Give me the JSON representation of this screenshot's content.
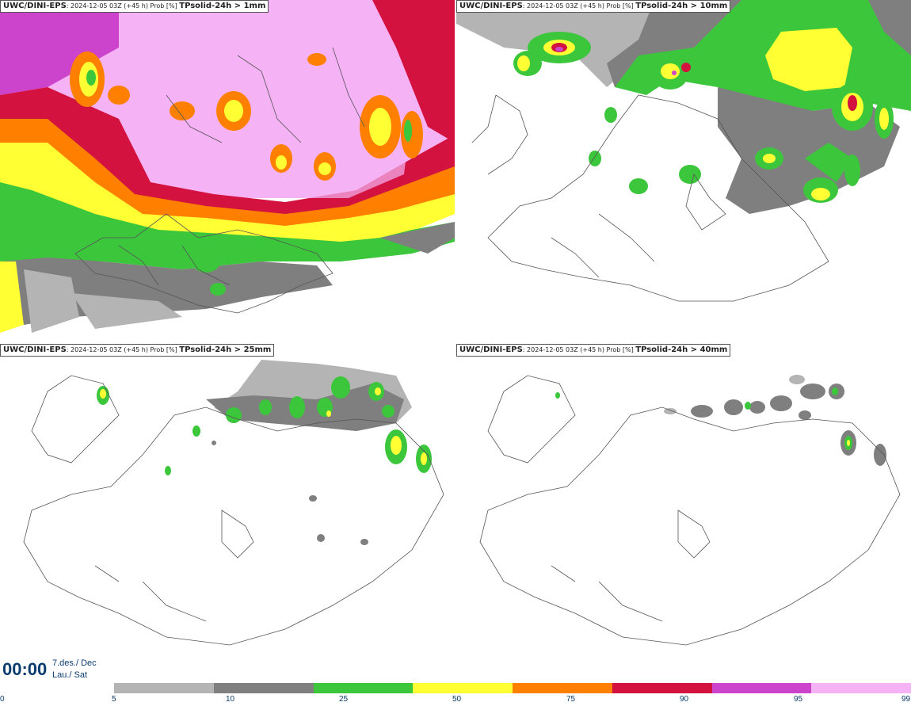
{
  "panels": [
    {
      "model": "UWC/DINI-EPS",
      "meta": "2024-12-05 03Z (+45 h) Prob [%]",
      "var": "TPsolid-24h > 1mm"
    },
    {
      "model": "UWC/DINI-EPS",
      "meta": "2024-12-05 03Z (+45 h) Prob [%]",
      "var": "TPsolid-24h > 10mm"
    },
    {
      "model": "UWC/DINI-EPS",
      "meta": "2024-12-05 03Z (+45 h) Prob [%]",
      "var": "TPsolid-24h > 25mm"
    },
    {
      "model": "UWC/DINI-EPS",
      "meta": "2024-12-05 03Z (+45 h) Prob [%]",
      "var": "TPsolid-24h > 40mm"
    }
  ],
  "valid": {
    "time": "00:00",
    "date1": "7.des./ Dec",
    "date2": "Lau./ Sat"
  },
  "colorbar": {
    "ticks": [
      "0",
      "5",
      "10",
      "25",
      "50",
      "75",
      "90",
      "95",
      "99"
    ],
    "colors": [
      "#ffffff",
      "#b4b4b4",
      "#7f7f7f",
      "#3cc63c",
      "#ffff33",
      "#ff7f00",
      "#d4123f",
      "#cc44cc",
      "#f5b3f5"
    ]
  }
}
